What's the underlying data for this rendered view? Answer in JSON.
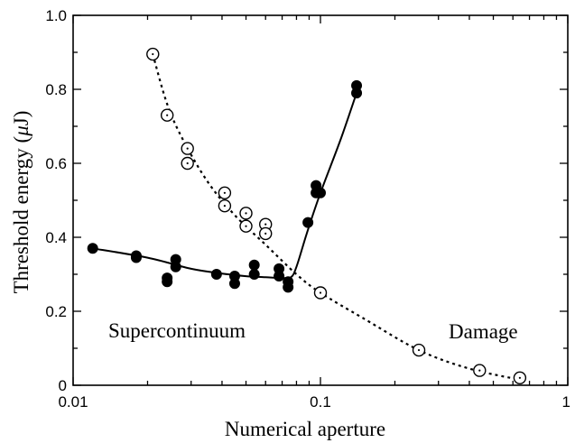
{
  "chart_data": {
    "type": "scatter",
    "title": "",
    "xlabel": "Numerical aperture",
    "ylabel_main": "Threshold energy (",
    "ylabel_mu": "μ",
    "ylabel_end": "J)",
    "x_scale": "log",
    "xlim": [
      0.01,
      1
    ],
    "ylim": [
      0,
      1.0
    ],
    "x_ticks": [
      {
        "value": 0.01,
        "label": "0.01"
      },
      {
        "value": 0.1,
        "label": "0.1"
      },
      {
        "value": 1,
        "label": "1"
      }
    ],
    "y_ticks": [
      {
        "value": 0,
        "label": "0"
      },
      {
        "value": 0.2,
        "label": "0.2"
      },
      {
        "value": 0.4,
        "label": "0.4"
      },
      {
        "value": 0.6,
        "label": "0.6"
      },
      {
        "value": 0.8,
        "label": "0.8"
      },
      {
        "value": 1.0,
        "label": "1.0"
      }
    ],
    "annotations": {
      "supercontinuum": "Supercontinuum",
      "damage": "Damage"
    },
    "series": [
      {
        "marker": "filled-circle",
        "points": [
          [
            0.012,
            0.37
          ],
          [
            0.018,
            0.35
          ],
          [
            0.018,
            0.345
          ],
          [
            0.024,
            0.29
          ],
          [
            0.024,
            0.28
          ],
          [
            0.026,
            0.34
          ],
          [
            0.026,
            0.32
          ],
          [
            0.038,
            0.3
          ],
          [
            0.045,
            0.295
          ],
          [
            0.045,
            0.275
          ],
          [
            0.054,
            0.325
          ],
          [
            0.054,
            0.3
          ],
          [
            0.068,
            0.315
          ],
          [
            0.068,
            0.295
          ],
          [
            0.074,
            0.28
          ],
          [
            0.074,
            0.265
          ],
          [
            0.089,
            0.44
          ],
          [
            0.096,
            0.54
          ],
          [
            0.096,
            0.52
          ],
          [
            0.1,
            0.52
          ],
          [
            0.14,
            0.81
          ],
          [
            0.14,
            0.79
          ]
        ],
        "fit": [
          [
            0.012,
            0.37
          ],
          [
            0.02,
            0.345
          ],
          [
            0.03,
            0.315
          ],
          [
            0.04,
            0.302
          ],
          [
            0.05,
            0.295
          ],
          [
            0.06,
            0.292
          ],
          [
            0.07,
            0.29
          ],
          [
            0.076,
            0.292
          ],
          [
            0.08,
            0.32
          ],
          [
            0.088,
            0.41
          ],
          [
            0.1,
            0.52
          ],
          [
            0.12,
            0.66
          ],
          [
            0.14,
            0.79
          ]
        ]
      },
      {
        "marker": "open-circle",
        "points": [
          [
            0.021,
            0.895
          ],
          [
            0.024,
            0.73
          ],
          [
            0.029,
            0.64
          ],
          [
            0.029,
            0.6
          ],
          [
            0.041,
            0.52
          ],
          [
            0.041,
            0.485
          ],
          [
            0.05,
            0.465
          ],
          [
            0.05,
            0.43
          ],
          [
            0.06,
            0.435
          ],
          [
            0.06,
            0.41
          ],
          [
            0.1,
            0.25
          ],
          [
            0.25,
            0.095
          ],
          [
            0.44,
            0.04
          ],
          [
            0.64,
            0.02
          ]
        ],
        "fit": [
          [
            0.021,
            0.895
          ],
          [
            0.024,
            0.76
          ],
          [
            0.028,
            0.66
          ],
          [
            0.035,
            0.55
          ],
          [
            0.045,
            0.46
          ],
          [
            0.06,
            0.38
          ],
          [
            0.08,
            0.3
          ],
          [
            0.1,
            0.25
          ],
          [
            0.15,
            0.18
          ],
          [
            0.25,
            0.095
          ],
          [
            0.4,
            0.045
          ],
          [
            0.64,
            0.015
          ]
        ]
      }
    ]
  }
}
